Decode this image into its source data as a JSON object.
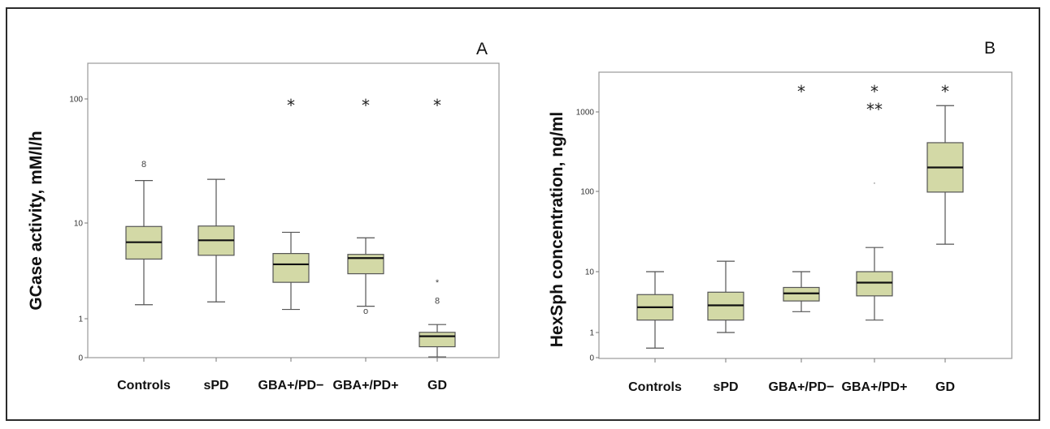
{
  "chart_data": [
    {
      "type": "box",
      "panel_label": "A",
      "ylabel": "GCase activity, mM/l/h",
      "y_scale": "log",
      "y_ticks": [
        "100",
        "10",
        "1",
        "0"
      ],
      "categories": [
        "Controls",
        "sPD",
        "GBA+/PD−",
        "GBA+/PD+",
        "GD"
      ],
      "boxes": [
        {
          "whisker_low": 1.4,
          "q1": 4.2,
          "median": 6.3,
          "q3": 9.2,
          "whisker_high": 22,
          "outliers": [
            {
              "value": 30,
              "marker": "8"
            }
          ],
          "significance": ""
        },
        {
          "whisker_low": 1.5,
          "q1": 4.6,
          "median": 6.6,
          "q3": 9.3,
          "whisker_high": 22.5,
          "outliers": [],
          "significance": ""
        },
        {
          "whisker_low": 1.25,
          "q1": 2.4,
          "median": 3.7,
          "q3": 4.8,
          "whisker_high": 8,
          "outliers": [],
          "significance": "*"
        },
        {
          "whisker_low": 1.35,
          "q1": 2.95,
          "median": 4.3,
          "q3": 4.7,
          "whisker_high": 7,
          "outliers": [
            {
              "value": 1.22,
              "marker": "o"
            }
          ],
          "significance": "*"
        },
        {
          "whisker_low": 0.02,
          "q1": 0.28,
          "median": 0.55,
          "q3": 0.65,
          "whisker_high": 0.85,
          "outliers": [
            {
              "value": 1.55,
              "marker": "8"
            },
            {
              "value": 2.4,
              "marker": "*"
            }
          ],
          "significance": "*"
        }
      ]
    },
    {
      "type": "box",
      "panel_label": "B",
      "ylabel": "HexSph concentration, ng/ml",
      "y_scale": "log",
      "y_ticks": [
        "1000",
        "100",
        "10",
        "1",
        "0"
      ],
      "categories": [
        "Controls",
        "sPD",
        "GBA+/PD−",
        "GBA+/PD+",
        "GD"
      ],
      "boxes": [
        {
          "whisker_low": 0.38,
          "q1": 1.6,
          "median": 2.6,
          "q3": 4.2,
          "whisker_high": 10,
          "outliers": [],
          "significance": ""
        },
        {
          "whisker_low": 1.0,
          "q1": 1.6,
          "median": 2.8,
          "q3": 4.6,
          "whisker_high": 13.5,
          "outliers": [],
          "significance": ""
        },
        {
          "whisker_low": 2.2,
          "q1": 3.3,
          "median": 4.4,
          "q3": 5.5,
          "whisker_high": 10,
          "outliers": [],
          "significance": "*"
        },
        {
          "whisker_low": 1.6,
          "q1": 4.0,
          "median": 6.6,
          "q3": 10,
          "whisker_high": 20,
          "outliers": [
            {
              "value": 130,
              "marker": "·"
            }
          ],
          "significance": "*\n**"
        },
        {
          "whisker_low": 22,
          "q1": 98,
          "median": 200,
          "q3": 410,
          "whisker_high": 1200,
          "outliers": [],
          "significance": "*"
        }
      ]
    }
  ],
  "colors": {
    "box_fill": "#d3d9a6",
    "box_stroke": "#555555",
    "median": "#111111",
    "plot_border": "#999999"
  }
}
